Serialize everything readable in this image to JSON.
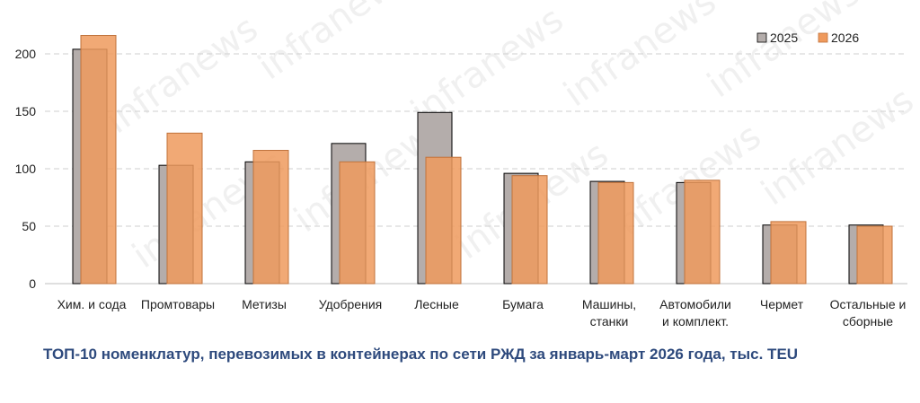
{
  "chart_data": {
    "type": "bar",
    "title": "ТОП-10 номенклатур, перевозимых в контейнерах по сети РЖД за январь-март 2026 года, тыс. TEU",
    "categories": [
      [
        "Хим. и сода"
      ],
      [
        "Промтовары"
      ],
      [
        "Метизы"
      ],
      [
        "Удобрения"
      ],
      [
        "Лесные"
      ],
      [
        "Бумага"
      ],
      [
        "Машины,",
        "станки"
      ],
      [
        "Автомобили",
        "и комплект."
      ],
      [
        "Чермет"
      ],
      [
        "Остальные и",
        "сборные"
      ]
    ],
    "series": [
      {
        "name": "2025",
        "color": "#b4adab",
        "values": [
          204,
          103,
          106,
          122,
          149,
          96,
          89,
          88,
          51,
          51
        ]
      },
      {
        "name": "2026",
        "color": "#ef9a5d",
        "values": [
          216,
          131,
          116,
          106,
          110,
          94,
          88,
          90,
          54,
          50
        ]
      }
    ],
    "ylim": [
      0,
      225
    ],
    "yticks": [
      0,
      50,
      100,
      150,
      200
    ],
    "grid": true,
    "legend_position": "top-right",
    "watermark": "infranews"
  }
}
